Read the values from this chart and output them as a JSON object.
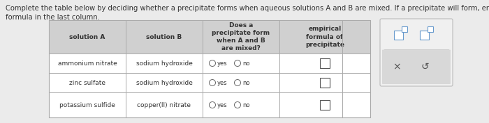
{
  "title_text": "Complete the table below by deciding whether a precipitate forms when aqueous solutions A and B are mixed. If a precipitate will form, enter its empirical\nformula in the last column.",
  "title_fontsize": 7.2,
  "bg_color": "#ebebeb",
  "table_bg": "#ffffff",
  "header_bg": "#d0d0d0",
  "col_headers": [
    "solution A",
    "solution B",
    "Does a\nprecipitate form\nwhen A and B\nare mixed?",
    "empirical\nformula of\nprecipitate"
  ],
  "rows": [
    [
      "ammonium nitrate",
      "sodium hydroxide"
    ],
    [
      "zinc sulfate",
      "sodium hydroxide"
    ],
    [
      "potassium sulfide",
      "copper(II) nitrate"
    ]
  ],
  "text_color": "#333333",
  "row_divider_color": "#aaaaaa",
  "table_border_color": "#999999",
  "side_box_bg": "#f0f0f0",
  "side_box_border": "#bbbbbb",
  "side_box_lower_bg": "#d8d8d8"
}
